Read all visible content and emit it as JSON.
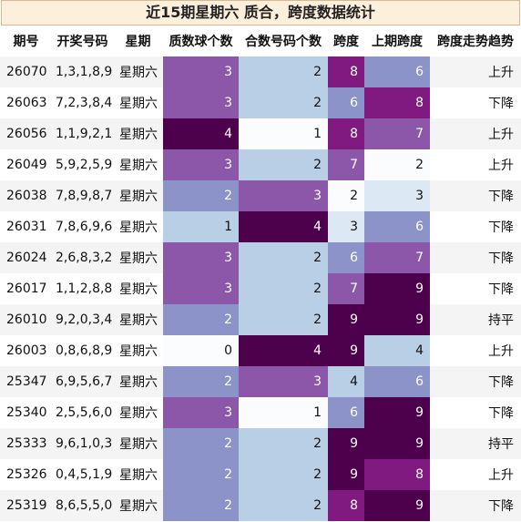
{
  "title": "近15期星期六 质合，跨度数据统计",
  "headers": [
    "期号",
    "开奖号码",
    "星期",
    "质数球个数",
    "合数号码个数",
    "跨度",
    "上期跨度",
    "跨度走势趋势"
  ],
  "rows": [
    {
      "issue": "26070",
      "numbers": "1,3,1,8,9",
      "weekday": "星期六",
      "prime_count": 3,
      "composite_count": 2,
      "span": 8,
      "prev_span": 6,
      "trend": "上升"
    },
    {
      "issue": "26063",
      "numbers": "7,2,3,8,4",
      "weekday": "星期六",
      "prime_count": 3,
      "composite_count": 2,
      "span": 6,
      "prev_span": 8,
      "trend": "下降"
    },
    {
      "issue": "26056",
      "numbers": "1,1,9,2,1",
      "weekday": "星期六",
      "prime_count": 4,
      "composite_count": 1,
      "span": 8,
      "prev_span": 7,
      "trend": "上升"
    },
    {
      "issue": "26049",
      "numbers": "5,9,2,5,9",
      "weekday": "星期六",
      "prime_count": 3,
      "composite_count": 2,
      "span": 7,
      "prev_span": 2,
      "trend": "上升"
    },
    {
      "issue": "26038",
      "numbers": "7,8,9,8,7",
      "weekday": "星期六",
      "prime_count": 2,
      "composite_count": 3,
      "span": 2,
      "prev_span": 3,
      "trend": "下降"
    },
    {
      "issue": "26031",
      "numbers": "7,8,6,9,6",
      "weekday": "星期六",
      "prime_count": 1,
      "composite_count": 4,
      "span": 3,
      "prev_span": 6,
      "trend": "下降"
    },
    {
      "issue": "26024",
      "numbers": "2,6,8,3,2",
      "weekday": "星期六",
      "prime_count": 3,
      "composite_count": 2,
      "span": 6,
      "prev_span": 7,
      "trend": "下降"
    },
    {
      "issue": "26017",
      "numbers": "1,1,2,8,8",
      "weekday": "星期六",
      "prime_count": 3,
      "composite_count": 2,
      "span": 7,
      "prev_span": 9,
      "trend": "下降"
    },
    {
      "issue": "26010",
      "numbers": "9,2,0,3,4",
      "weekday": "星期六",
      "prime_count": 2,
      "composite_count": 2,
      "span": 9,
      "prev_span": 9,
      "trend": "持平"
    },
    {
      "issue": "26003",
      "numbers": "0,8,6,8,9",
      "weekday": "星期六",
      "prime_count": 0,
      "composite_count": 4,
      "span": 9,
      "prev_span": 4,
      "trend": "上升"
    },
    {
      "issue": "25347",
      "numbers": "6,9,5,6,7",
      "weekday": "星期六",
      "prime_count": 2,
      "composite_count": 3,
      "span": 4,
      "prev_span": 6,
      "trend": "下降"
    },
    {
      "issue": "25340",
      "numbers": "2,5,5,6,0",
      "weekday": "星期六",
      "prime_count": 3,
      "composite_count": 1,
      "span": 6,
      "prev_span": 9,
      "trend": "下降"
    },
    {
      "issue": "25333",
      "numbers": "9,6,1,0,3",
      "weekday": "星期六",
      "prime_count": 2,
      "composite_count": 2,
      "span": 9,
      "prev_span": 9,
      "trend": "持平"
    },
    {
      "issue": "25326",
      "numbers": "0,4,5,1,9",
      "weekday": "星期六",
      "prime_count": 2,
      "composite_count": 2,
      "span": 9,
      "prev_span": 8,
      "trend": "上升"
    },
    {
      "issue": "25319",
      "numbers": "8,6,5,5,0",
      "weekday": "星期六",
      "prime_count": 2,
      "composite_count": 2,
      "span": 8,
      "prev_span": 9,
      "trend": "下降"
    }
  ],
  "colors": {
    "title_bg": "#fcefdc",
    "title_border": "#d9b98f",
    "heat_scale": [
      "#fbfcfe",
      "#dce8f3",
      "#b8cfe6",
      "#8b93c8",
      "#8c57a8",
      "#801a80",
      "#4d004b"
    ]
  }
}
